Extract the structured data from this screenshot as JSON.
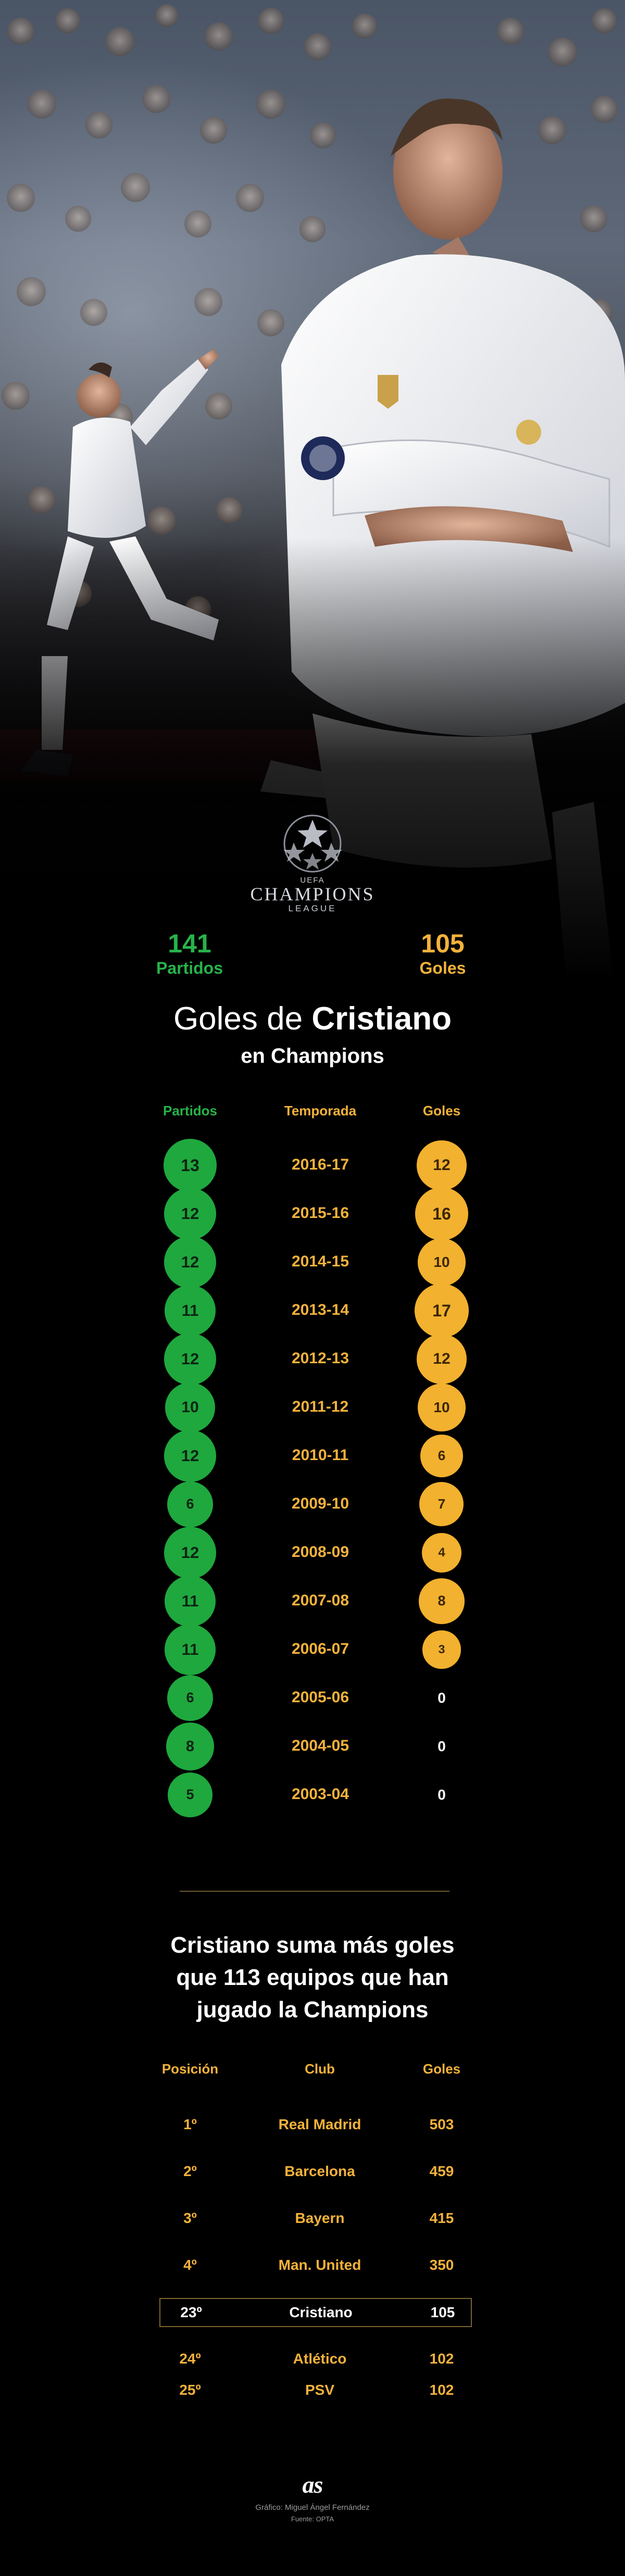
{
  "totals": {
    "matches_value": "141",
    "matches_label": "Partidos",
    "goals_value": "105",
    "goals_label": "Goles"
  },
  "logo": {
    "uefa": "UEFA",
    "line1": "CHAMPIONS",
    "line2": "LEAGUE"
  },
  "title": {
    "prefix": "Goles de ",
    "bold": "Cristiano",
    "subtitle": "en Champions"
  },
  "chart_data": [
    {
      "type": "table",
      "columns": [
        "Partidos",
        "Temporada",
        "Goles"
      ],
      "rows": [
        {
          "apps": 13,
          "season": "2016-17",
          "goals": 12
        },
        {
          "apps": 12,
          "season": "2015-16",
          "goals": 16
        },
        {
          "apps": 12,
          "season": "2014-15",
          "goals": 10
        },
        {
          "apps": 11,
          "season": "2013-14",
          "goals": 17
        },
        {
          "apps": 12,
          "season": "2012-13",
          "goals": 12
        },
        {
          "apps": 10,
          "season": "2011-12",
          "goals": 10
        },
        {
          "apps": 12,
          "season": "2010-11",
          "goals": 6
        },
        {
          "apps": 6,
          "season": "2009-10",
          "goals": 7
        },
        {
          "apps": 12,
          "season": "2008-09",
          "goals": 4
        },
        {
          "apps": 11,
          "season": "2007-08",
          "goals": 8
        },
        {
          "apps": 11,
          "season": "2006-07",
          "goals": 3
        },
        {
          "apps": 6,
          "season": "2005-06",
          "goals": 0
        },
        {
          "apps": 8,
          "season": "2004-05",
          "goals": 0
        },
        {
          "apps": 5,
          "season": "2003-04",
          "goals": 0
        }
      ]
    },
    {
      "type": "table",
      "title": "Cristiano suma más goles que 113 equipos que han jugado la Champions",
      "columns": [
        "Posición",
        "Club",
        "Goles"
      ],
      "rows": [
        {
          "position": "1º",
          "club": "Real Madrid",
          "goals": 503
        },
        {
          "position": "2º",
          "club": "Barcelona",
          "goals": 459
        },
        {
          "position": "3º",
          "club": "Bayern",
          "goals": 415
        },
        {
          "position": "4º",
          "club": "Man. United",
          "goals": 350
        },
        {
          "position": "23º",
          "club": "Cristiano",
          "goals": 105,
          "highlight": true
        },
        {
          "position": "24º",
          "club": "Atlético",
          "goals": 102
        },
        {
          "position": "25º",
          "club": "PSV",
          "goals": 102
        }
      ]
    }
  ],
  "section2": {
    "title_l1": "Cristiano suma más goles",
    "title_l2": "que 113 equipos que han",
    "title_l3": "jugado la Champions"
  },
  "colors": {
    "green": "#27b34a",
    "orange": "#f3b23b",
    "background": "#000000"
  },
  "footer": {
    "brand": "as",
    "credit1": "Gráfico: Miguel Ángel Fernández",
    "credit2": "Fuente: OPTA"
  }
}
